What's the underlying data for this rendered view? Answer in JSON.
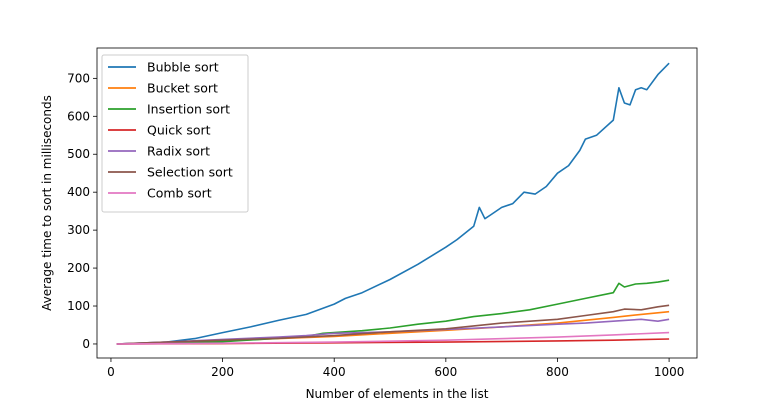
{
  "chart_data": {
    "type": "line",
    "title": "",
    "xlabel": "Number of elements in the list",
    "ylabel": "Average time to sort in milliseconds",
    "xlim": [
      -25,
      1050
    ],
    "ylim": [
      -37,
      780
    ],
    "xticks": [
      0,
      200,
      400,
      600,
      800,
      1000
    ],
    "yticks": [
      0,
      100,
      200,
      300,
      400,
      500,
      600,
      700
    ],
    "grid": false,
    "legend_position": "upper-left",
    "series": [
      {
        "name": "Bubble sort",
        "color": "#1f77b4",
        "x": [
          10,
          50,
          100,
          150,
          200,
          250,
          300,
          350,
          400,
          420,
          450,
          500,
          550,
          600,
          620,
          650,
          660,
          670,
          680,
          700,
          720,
          740,
          760,
          780,
          800,
          820,
          840,
          850,
          870,
          900,
          910,
          920,
          930,
          940,
          950,
          960,
          980,
          1000
        ],
        "y": [
          0,
          2,
          5,
          14,
          30,
          45,
          62,
          78,
          105,
          120,
          135,
          170,
          210,
          255,
          275,
          310,
          360,
          330,
          340,
          360,
          370,
          400,
          395,
          415,
          450,
          470,
          510,
          540,
          550,
          590,
          675,
          635,
          630,
          670,
          675,
          670,
          710,
          740
        ]
      },
      {
        "name": "Bucket sort",
        "color": "#ff7f0e",
        "x": [
          10,
          100,
          200,
          300,
          400,
          500,
          600,
          700,
          800,
          900,
          950,
          1000
        ],
        "y": [
          0,
          3,
          8,
          14,
          20,
          28,
          36,
          45,
          55,
          70,
          78,
          85
        ]
      },
      {
        "name": "Insertion sort",
        "color": "#2ca02c",
        "x": [
          10,
          100,
          200,
          300,
          350,
          380,
          400,
          450,
          500,
          550,
          600,
          650,
          700,
          750,
          800,
          850,
          900,
          910,
          920,
          940,
          960,
          980,
          1000
        ],
        "y": [
          0,
          2,
          6,
          15,
          20,
          28,
          30,
          35,
          42,
          52,
          60,
          72,
          80,
          90,
          105,
          120,
          135,
          160,
          150,
          158,
          160,
          163,
          168
        ]
      },
      {
        "name": "Quick sort",
        "color": "#d62728",
        "x": [
          10,
          200,
          400,
          600,
          800,
          900,
          1000
        ],
        "y": [
          0,
          1,
          3,
          5,
          8,
          10,
          13
        ]
      },
      {
        "name": "Radix sort",
        "color": "#9467bd",
        "x": [
          10,
          100,
          200,
          300,
          350,
          400,
          500,
          600,
          700,
          800,
          850,
          900,
          920,
          950,
          980,
          1000
        ],
        "y": [
          0,
          5,
          12,
          18,
          22,
          28,
          32,
          38,
          45,
          52,
          55,
          60,
          62,
          65,
          60,
          65
        ]
      },
      {
        "name": "Selection sort",
        "color": "#8c564b",
        "x": [
          10,
          100,
          200,
          300,
          400,
          500,
          600,
          700,
          800,
          850,
          900,
          920,
          950,
          980,
          1000
        ],
        "y": [
          0,
          5,
          10,
          15,
          22,
          32,
          40,
          55,
          65,
          75,
          85,
          92,
          90,
          98,
          102
        ]
      },
      {
        "name": "Comb sort",
        "color": "#e377c2",
        "x": [
          10,
          200,
          400,
          600,
          800,
          900,
          1000
        ],
        "y": [
          0,
          2,
          5,
          10,
          18,
          24,
          30
        ]
      }
    ]
  }
}
